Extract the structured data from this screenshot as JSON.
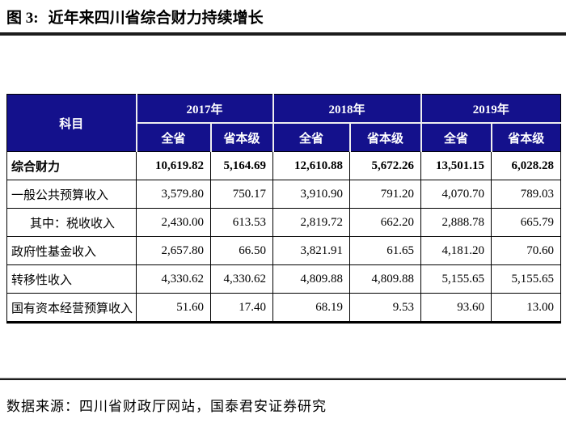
{
  "figure": {
    "title_prefix": "图 3:",
    "title_text": "近年来四川省综合财力持续增长"
  },
  "table": {
    "header": {
      "subject": "科目",
      "years": [
        "2017年",
        "2018年",
        "2019年"
      ],
      "subcolumns": [
        "全省",
        "省本级"
      ]
    },
    "rows": [
      {
        "label": "综合财力",
        "values": [
          "10,619.82",
          "5,164.69",
          "12,610.88",
          "5,672.26",
          "13,501.15",
          "6,028.28"
        ]
      },
      {
        "label": "一般公共预算收入",
        "values": [
          "3,579.80",
          "750.17",
          "3,910.90",
          "791.20",
          "4,070.70",
          "789.03"
        ]
      },
      {
        "label": "其中：税收收入",
        "values": [
          "2,430.00",
          "613.53",
          "2,819.72",
          "662.20",
          "2,888.78",
          "665.79"
        ]
      },
      {
        "label": "政府性基金收入",
        "values": [
          "2,657.80",
          "66.50",
          "3,821.91",
          "61.65",
          "4,181.20",
          "70.60"
        ]
      },
      {
        "label": "转移性收入",
        "values": [
          "4,330.62",
          "4,330.62",
          "4,809.88",
          "4,809.88",
          "5,155.65",
          "5,155.65"
        ]
      },
      {
        "label": "国有资本经营预算收入",
        "values": [
          "51.60",
          "17.40",
          "68.19",
          "9.53",
          "93.60",
          "13.00"
        ]
      }
    ]
  },
  "footer": {
    "source": "数据来源：四川省财政厅网站，国泰君安证券研究"
  },
  "colors": {
    "header_bg": "#14118c",
    "rule": "#1c1c1c",
    "grid_border": "#000000",
    "header_divider": "#efefef"
  }
}
